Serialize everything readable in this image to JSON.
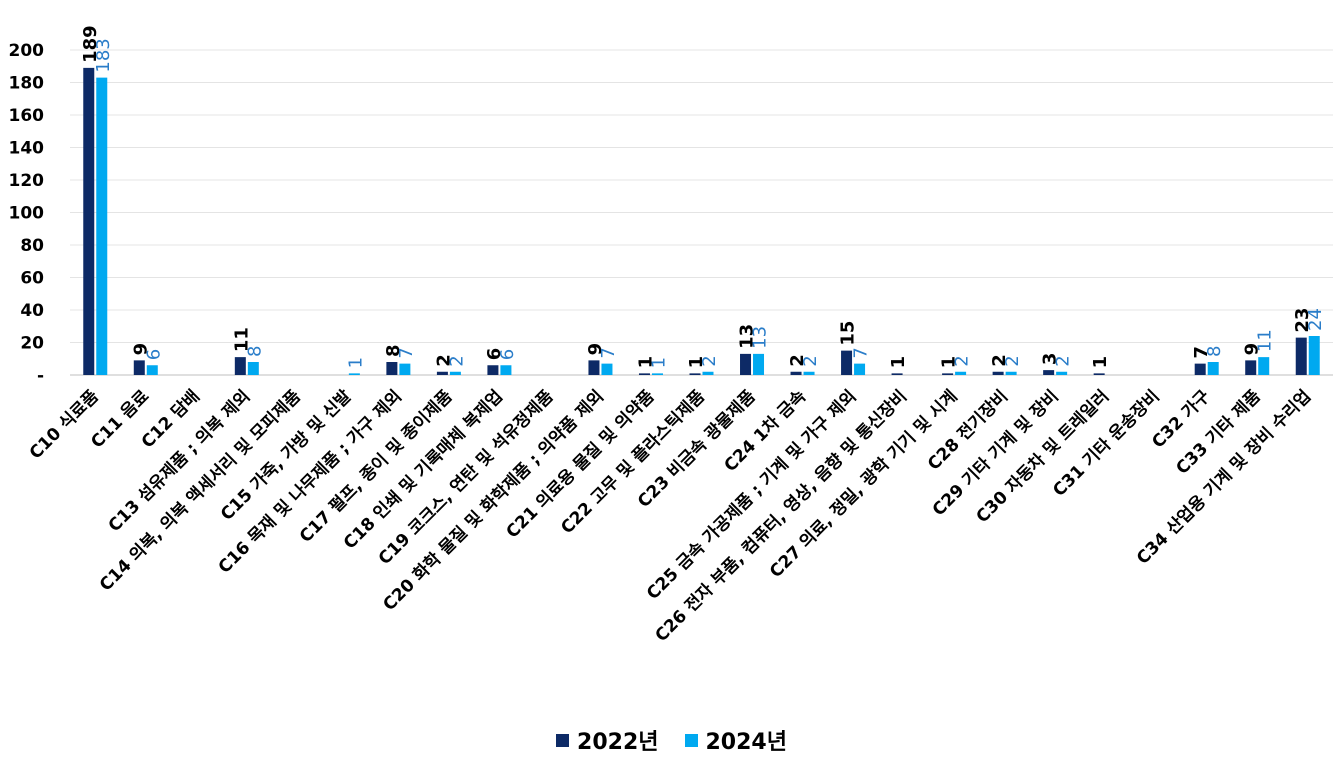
{
  "chart_data": {
    "type": "bar",
    "title": "",
    "xlabel": "",
    "ylabel": "",
    "ylim": [
      0,
      200
    ],
    "y_ticks": [
      "-",
      "20",
      "40",
      "60",
      "80",
      "100",
      "120",
      "140",
      "160",
      "180",
      "200"
    ],
    "grid": true,
    "legend_position": "bottom",
    "categories": [
      "C10 식료품",
      "C11 음료",
      "C12 담배",
      "C13 섬유제품 ; 의복 제외",
      "C14 의복, 의복 액세서리 및 모피제품",
      "C15 가죽, 가방 및 신발",
      "C16 목재 및 나무제품 ; 가구 제외",
      "C17 펄프, 종이 및 종이제품",
      "C18 인쇄 및 기록매체 복제업",
      "C19 코크스, 연탄 및 석유정제품",
      "C20 화학 물질 및 화학제품 ; 의약품 제외",
      "C21 의료용 물질 및 의약품",
      "C22 고무 및 플라스틱제품",
      "C23 비금속 광물제품",
      "C24 1차 금속",
      "C25 금속 가공제품 ; 기계 및 가구 제외",
      "C26 전자 부품, 컴퓨터, 영상, 음향 및 통신장비",
      "C27 의료, 정밀, 광학 기기 및 시계",
      "C28 전기장비",
      "C29 기타 기계 및 장비",
      "C30 자동차 및 트레일러",
      "C31 기타 운송장비",
      "C32 가구",
      "C33 기타 제품",
      "C34 산업용 기계 및 장비 수리업"
    ],
    "series": [
      {
        "name": "2022년",
        "color": "#0d2a66",
        "label_color": "#000000",
        "values": [
          189,
          9,
          null,
          11,
          null,
          null,
          8,
          2,
          6,
          null,
          9,
          1,
          1,
          13,
          2,
          15,
          1,
          1,
          2,
          3,
          1,
          null,
          7,
          9,
          23
        ]
      },
      {
        "name": "2024년",
        "color": "#00a9f0",
        "label_color": "#2a7dc9",
        "values": [
          183,
          6,
          null,
          8,
          null,
          1,
          7,
          2,
          6,
          null,
          7,
          1,
          2,
          13,
          2,
          7,
          null,
          2,
          2,
          2,
          null,
          null,
          8,
          11,
          24
        ]
      }
    ]
  }
}
